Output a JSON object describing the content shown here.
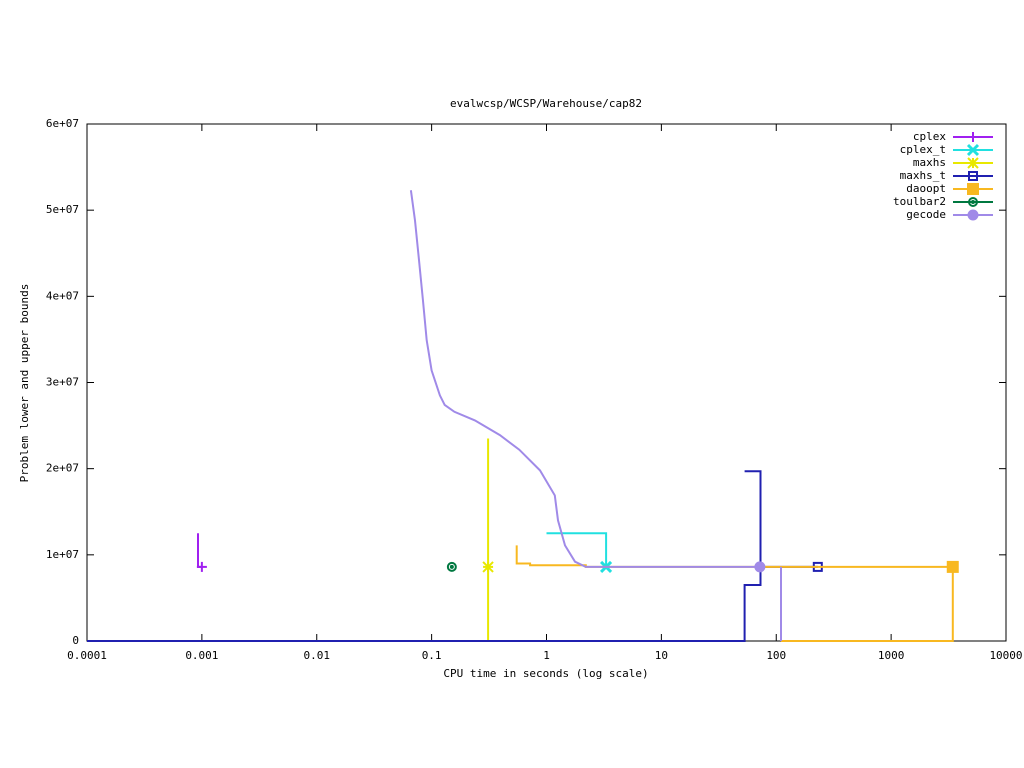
{
  "chart_data": {
    "type": "line",
    "title": "evalwcsp/WCSP/Warehouse/cap82",
    "x_label": "CPU time in seconds (log scale)",
    "y_label": "Problem lower and upper bounds",
    "xlog": true,
    "xlim": [
      0.0001,
      10000
    ],
    "xticks": [
      0.0001,
      0.001,
      0.01,
      0.1,
      1,
      10,
      100,
      1000,
      10000
    ],
    "ylim": [
      0,
      60000000
    ],
    "yticks": [
      0,
      {
        "value": 10000000,
        "label": "1e+07"
      },
      {
        "value": 20000000,
        "label": "2e+07"
      },
      {
        "value": 30000000,
        "label": "3e+07"
      },
      {
        "value": 40000000,
        "label": "4e+07"
      },
      {
        "value": 50000000,
        "label": "5e+07"
      },
      {
        "value": 60000000,
        "label": "6e+07"
      }
    ],
    "grid": false,
    "legend": "top-right",
    "series": [
      {
        "name": "cplex",
        "color": "#a020f0",
        "marker": "plus",
        "x": [
          0.000925,
          0.000925,
          0.001
        ],
        "values": [
          12500000,
          8600000,
          8600000
        ]
      },
      {
        "name": "cplex_t",
        "color": "#20e0e0",
        "marker": "cross",
        "x": [
          1,
          3.3,
          3.3
        ],
        "values": [
          12500000,
          12500000,
          8600000
        ]
      },
      {
        "name": "maxhs",
        "color": "#e8e800",
        "marker": "star",
        "x": [
          0.31,
          0.31,
          0.31
        ],
        "values": [
          0,
          23500000,
          8600000
        ]
      },
      {
        "name": "maxhs_t",
        "color": "#2020b0",
        "marker": "open-square",
        "x": [
          0.0001,
          53,
          53,
          73,
          73,
          null,
          53,
          73,
          73,
          230
        ],
        "values": [
          0,
          0,
          6500000,
          6500000,
          8600000,
          null,
          19700000,
          19700000,
          8600000,
          8600000
        ]
      },
      {
        "name": "daoopt",
        "color": "#f8b820",
        "marker": "filled-square",
        "x": [
          0.55,
          0.55,
          0.72,
          0.72,
          2.2,
          2.2,
          3440,
          null,
          110,
          3440,
          3440
        ],
        "values": [
          11100000,
          9000000,
          9000000,
          8800000,
          8800000,
          8600000,
          8600000,
          null,
          0,
          0,
          8600000
        ]
      },
      {
        "name": "toulbar2",
        "color": "#007840",
        "marker": "open-circle",
        "x": [
          0.15
        ],
        "values": [
          8600000
        ]
      },
      {
        "name": "gecode",
        "color": "#a08ae8",
        "marker": "filled-circle",
        "x": [
          110,
          110,
          null,
          0.066,
          0.0716,
          0.0776,
          0.084,
          0.0906,
          0.1,
          0.118,
          0.13,
          0.158,
          0.238,
          0.393,
          0.58,
          0.877,
          1.18,
          1.26,
          1.45,
          1.77,
          2.2,
          72
        ],
        "values": [
          0,
          8600000,
          null,
          52300000,
          48800000,
          44200000,
          39600000,
          34900000,
          31400000,
          28500000,
          27400000,
          26600000,
          25600000,
          23900000,
          22200000,
          19800000,
          16900000,
          14000000,
          11100000,
          9200000,
          8600000,
          8600000
        ]
      }
    ]
  }
}
